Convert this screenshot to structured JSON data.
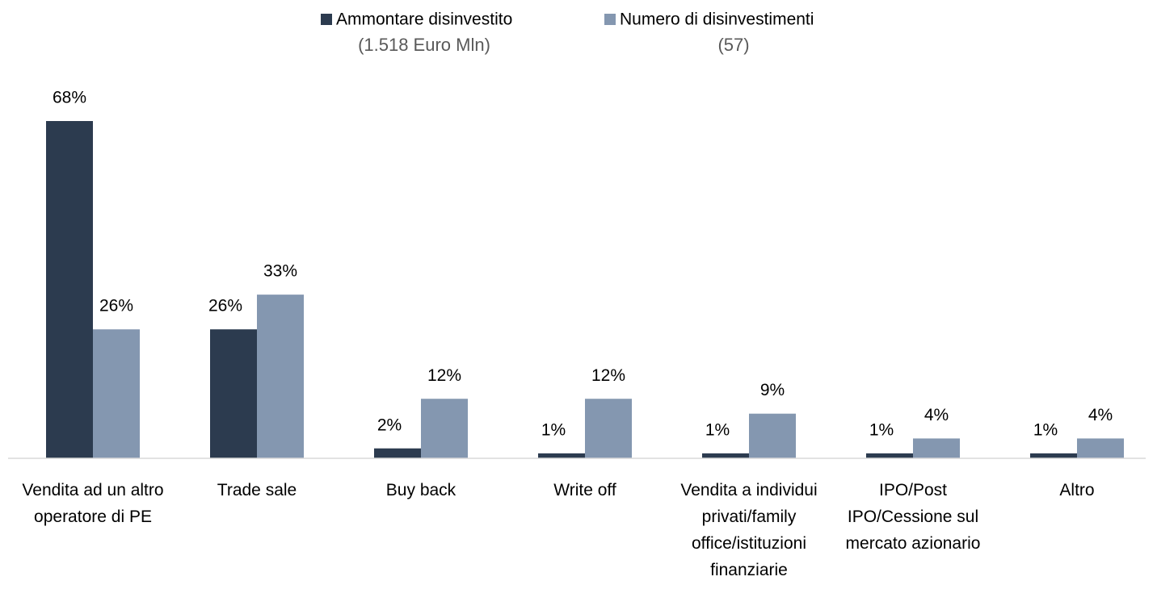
{
  "chart_data": {
    "type": "bar",
    "categories": [
      "Vendita ad un altro operatore di PE",
      "Trade sale",
      "Buy back",
      "Write off",
      "Vendita a individui privati/family office/istituzioni finanziarie",
      "IPO/Post IPO/Cessione sul mercato azionario",
      "Altro"
    ],
    "series": [
      {
        "name": "Ammontare disinvestito",
        "legend_subtitle": "(1.518 Euro Mln)",
        "color": "#2c3b4f",
        "values": [
          68,
          26,
          2,
          1,
          1,
          1,
          1
        ],
        "value_labels": [
          "68%",
          "26%",
          "2%",
          "1%",
          "1%",
          "1%",
          "1%"
        ]
      },
      {
        "name": "Numero di disinvestimenti",
        "legend_subtitle": "(57)",
        "color": "#8497b0",
        "values": [
          26,
          33,
          12,
          12,
          9,
          4,
          4
        ],
        "value_labels": [
          "26%",
          "33%",
          "12%",
          "12%",
          "9%",
          "4%",
          "4%"
        ]
      }
    ],
    "legend": "top"
  }
}
